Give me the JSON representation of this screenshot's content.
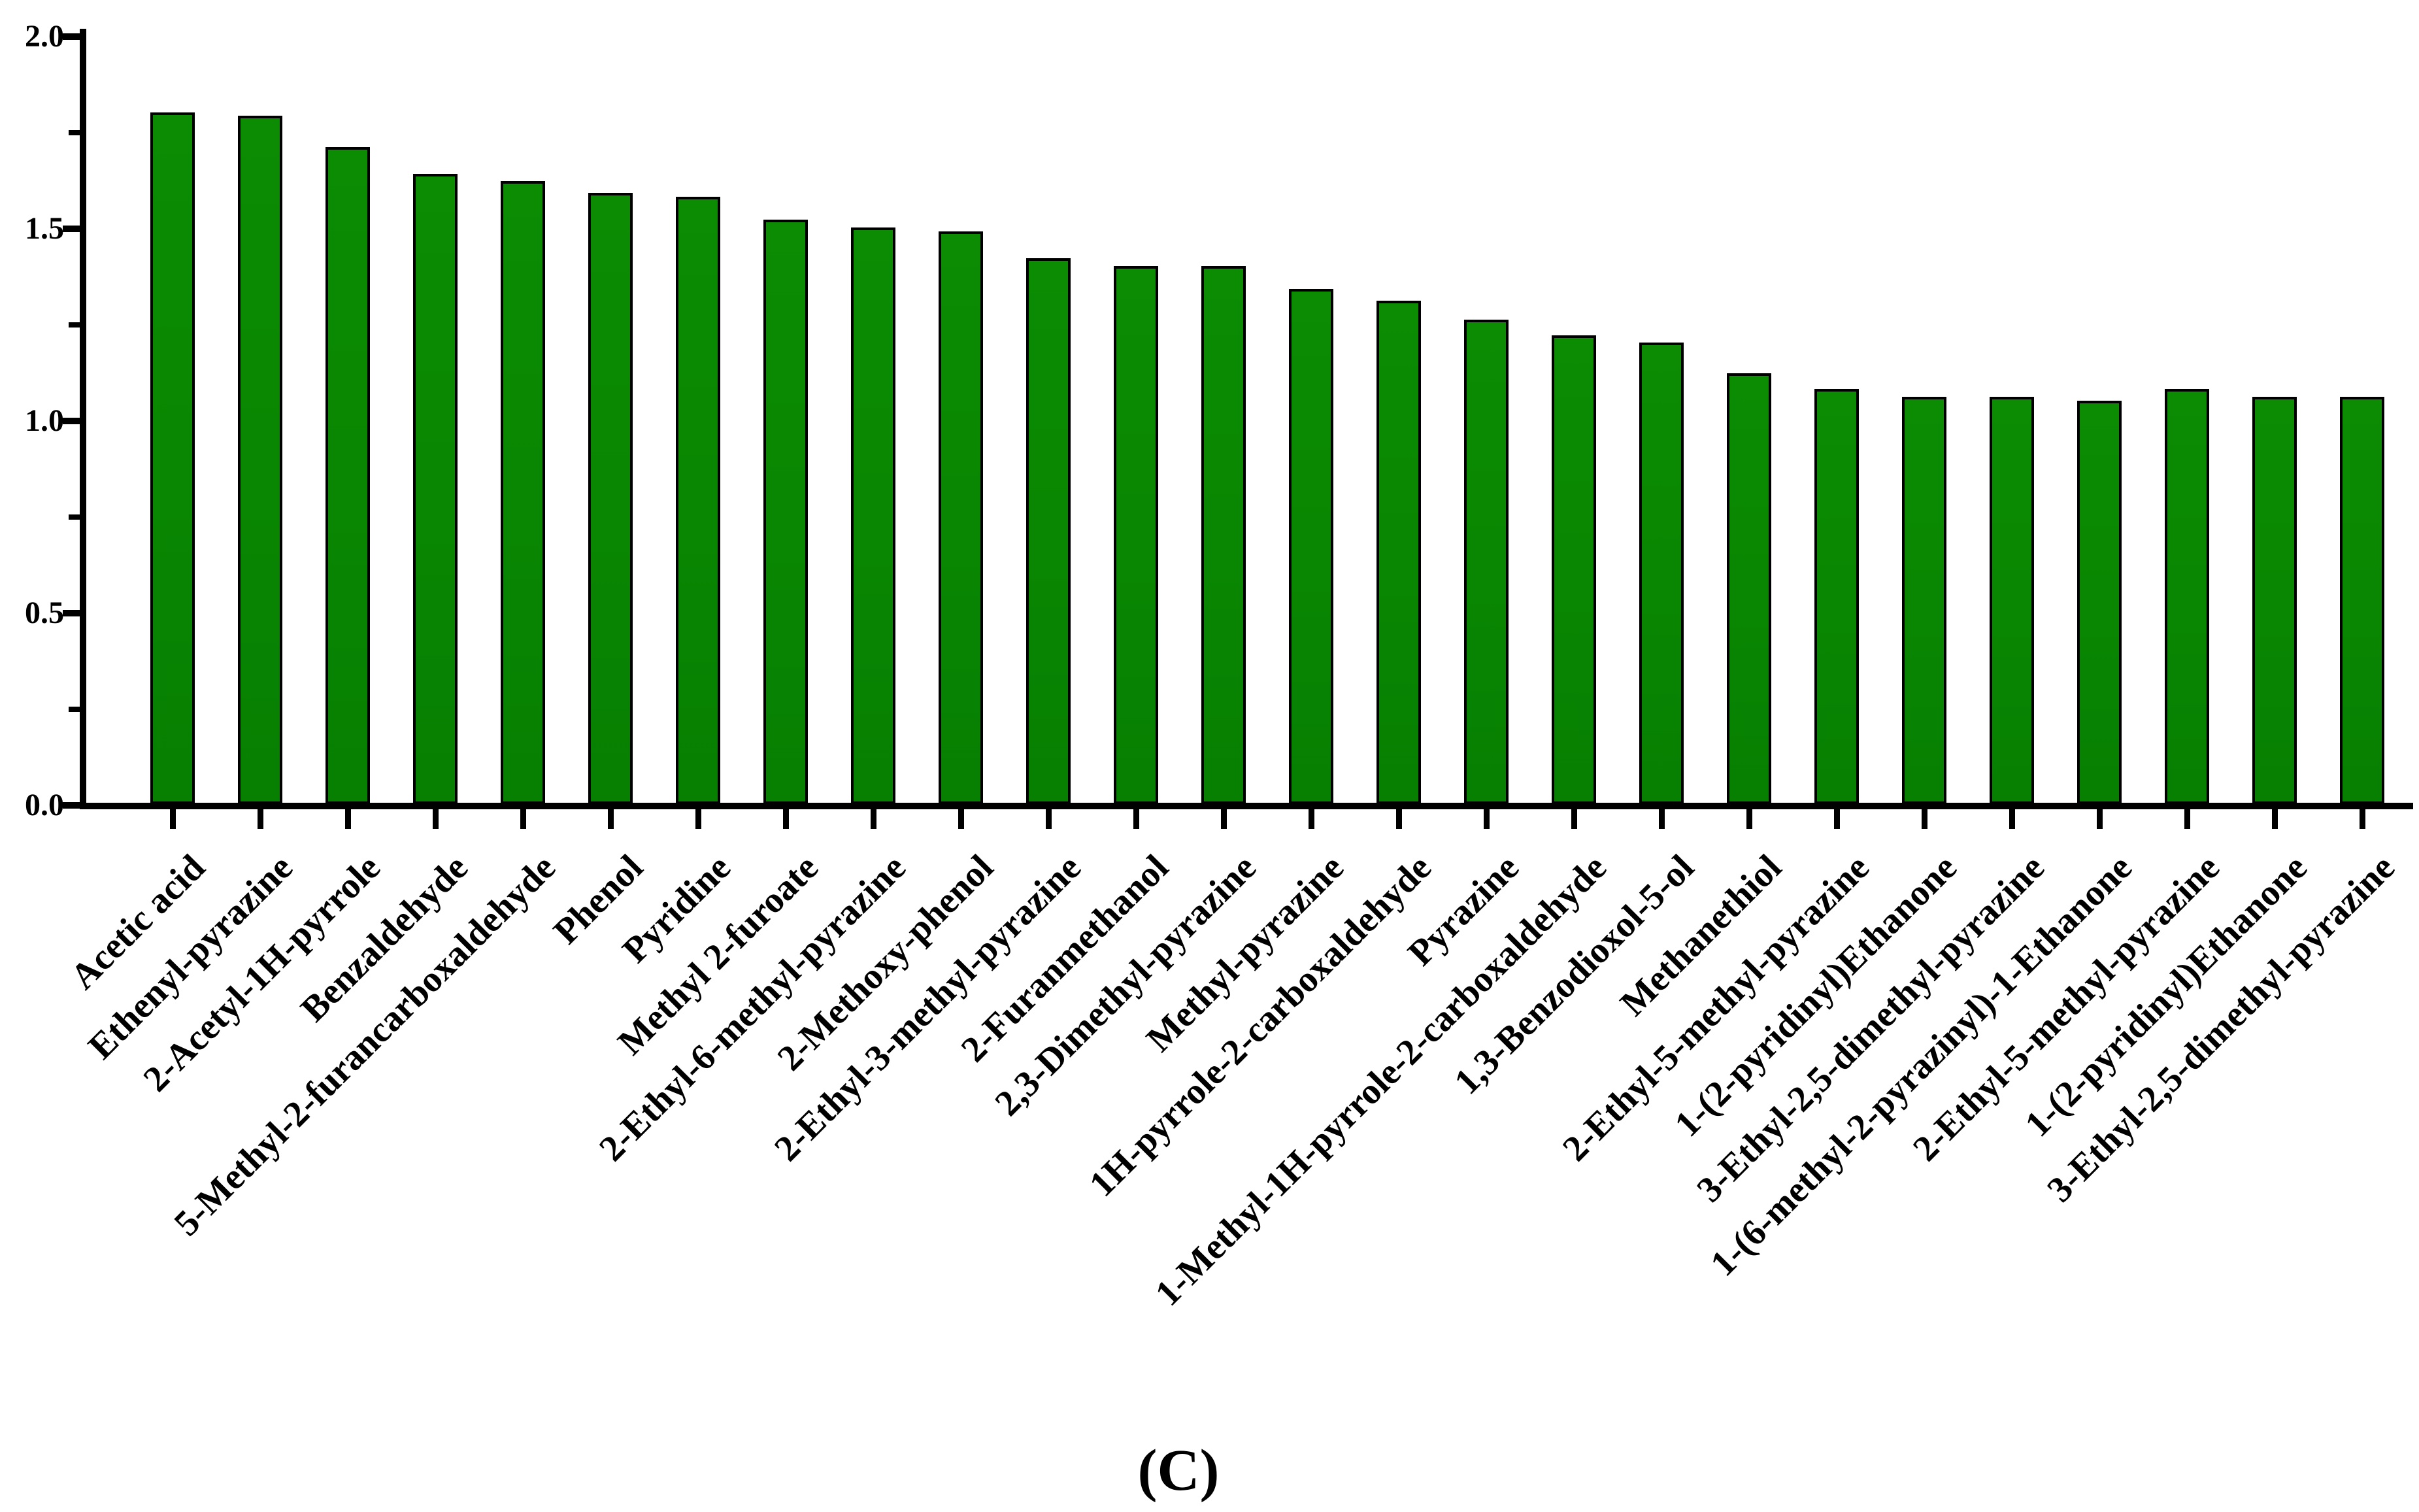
{
  "figure": {
    "caption": "(C)"
  },
  "chart_data": {
    "type": "bar",
    "title": "",
    "xlabel": "",
    "ylabel": "",
    "ylim": [
      0.0,
      2.0
    ],
    "grid": "off",
    "legend": "none",
    "bar_color": "#098602",
    "bar_border_color": "#000000",
    "ytick_major_labels": [
      "0.0",
      "0.5",
      "1.0",
      "1.5",
      "2.0"
    ],
    "ytick_major_values": [
      0.0,
      0.5,
      1.0,
      1.5,
      2.0
    ],
    "ytick_minor_values": [
      0.25,
      0.75,
      1.25,
      1.75
    ],
    "categories": [
      "Acetic acid",
      "Ethenyl-pyrazine",
      "2-Acetyl-1H-pyrrole",
      "Benzaldehyde",
      "5-Methyl-2-furancarboxaldehyde",
      "Phenol",
      "Pyridine",
      "Methyl 2-furoate",
      "2-Ethyl-6-methyl-pyrazine",
      "2-Methoxy-phenol",
      "2-Ethyl-3-methyl-pyrazine",
      "2-Furanmethanol",
      "2,3-Dimethyl-pyrazine",
      "Methyl-pyrazine",
      "1H-pyrrole-2-carboxaldehyde",
      "Pyrazine",
      "1-Methyl-1H-pyrrole-2-carboxaldehyde",
      "1,3-Benzodioxol-5-ol",
      "Methanethiol",
      "2-Ethyl-5-methyl-pyrazine",
      "1-(2-pyridinyl)Ethanone",
      "3-Ethyl-2,5-dimethyl-pyrazine",
      "1-(6-methyl-2-pyrazinyl)-1-Ethanone",
      "2-Ethyl-5-methyl-pyrazine",
      "1-(2-pyridinyl)Ethanone",
      "3-Ethyl-2,5-dimethyl-pyrazine"
    ],
    "values": [
      1.8,
      1.79,
      1.71,
      1.64,
      1.62,
      1.59,
      1.58,
      1.52,
      1.5,
      1.49,
      1.42,
      1.4,
      1.4,
      1.34,
      1.31,
      1.26,
      1.22,
      1.2,
      1.12,
      1.08,
      1.06,
      1.06,
      1.05,
      1.08,
      1.06,
      1.06
    ]
  }
}
